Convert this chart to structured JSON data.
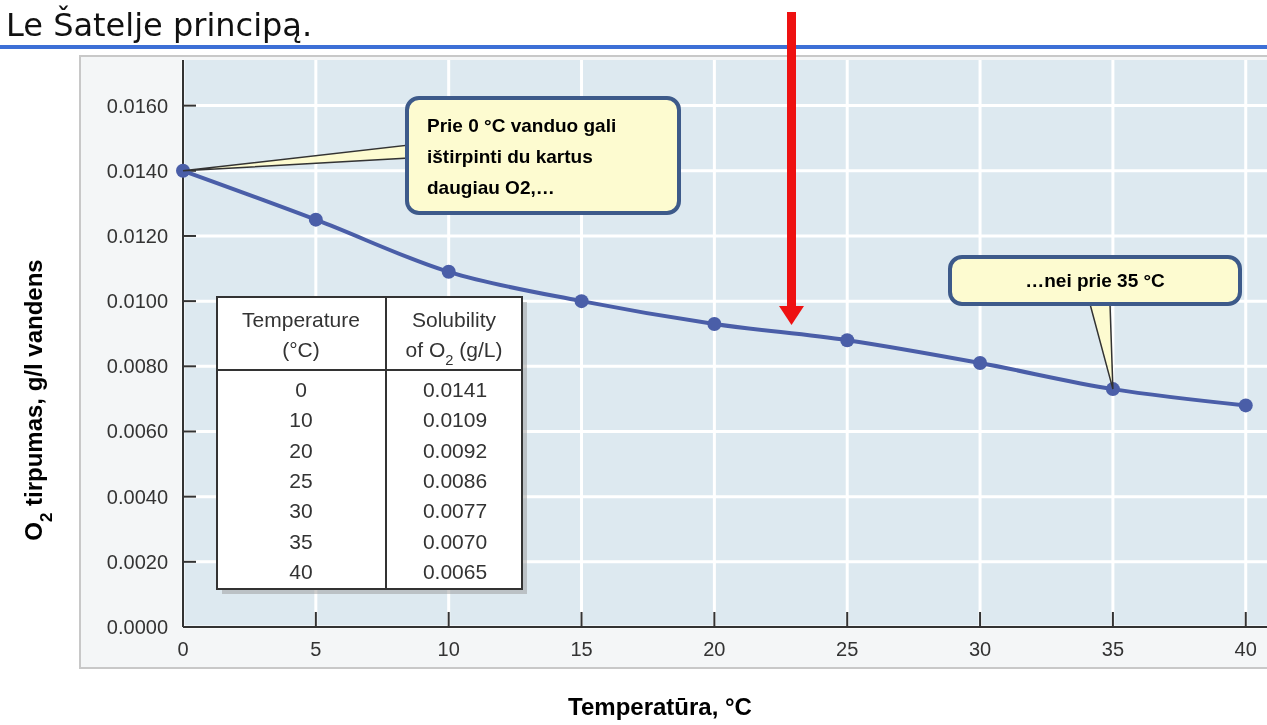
{
  "chart_data": {
    "type": "line",
    "title": "Le Šatelje principą.",
    "xlabel": "Temperatūra, °C",
    "ylabel": "O$_{2}$ tirpumas, g/l vandens",
    "x": [
      0,
      5,
      10,
      15,
      20,
      25,
      30,
      35,
      40
    ],
    "series": [
      {
        "color": "#4a5ea8",
        "values": [
          0.014,
          0.0125,
          0.0109,
          0.01,
          0.0093,
          0.0088,
          0.0081,
          0.0073,
          0.0068
        ]
      }
    ],
    "xlim": [
      0,
      40.8
    ],
    "xticks": [
      0,
      5,
      10,
      15,
      20,
      25,
      30,
      35,
      40
    ],
    "ylim": [
      0,
      0.0174
    ],
    "yticks": [
      {
        "value": 0,
        "label": "0.0000"
      },
      {
        "value": 0.002,
        "label": "0.0020"
      },
      {
        "value": 0.004,
        "label": "0.0040"
      },
      {
        "value": 0.006,
        "label": "0.0060"
      },
      {
        "value": 0.008,
        "label": "0.0080"
      },
      {
        "value": 0.01,
        "label": "0.0100"
      },
      {
        "value": 0.012,
        "label": "0.0120"
      },
      {
        "value": 0.014,
        "label": "0.0140"
      },
      {
        "value": 0.016,
        "label": "0.0160"
      }
    ],
    "grid": true,
    "marker": "circle",
    "line_style": "solid",
    "annotations": [
      {
        "text": "Prie 0 °C vanduo gali ištirpinti du kartus daugiau O2,…",
        "x": 0,
        "y": 0.014
      },
      {
        "text": "…nei prie 35 °C",
        "x": 35,
        "y": 0.0073
      },
      "Temperature (°C)",
      "Solubility of O$_{2}$ (g/L)",
      "0",
      "0.0141",
      "10",
      "0.0109",
      "20",
      "0.0092",
      "25",
      "0.0086",
      "30",
      "0.0077",
      "35",
      "0.0070",
      "40",
      "0.0065"
    ]
  }
}
